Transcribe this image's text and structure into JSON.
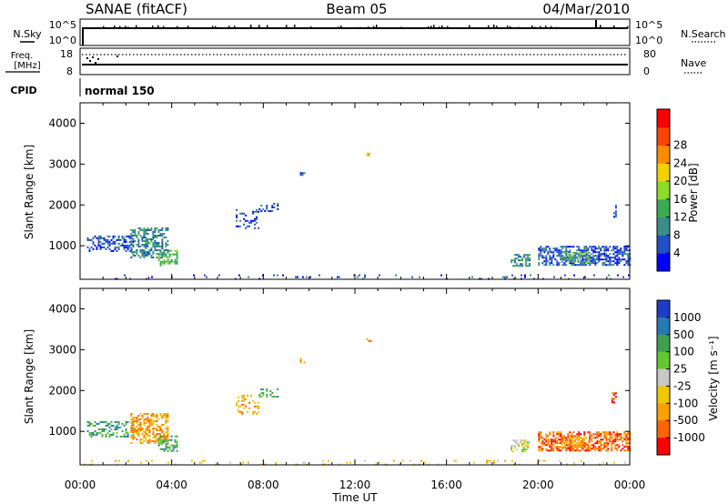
{
  "header": {
    "station": "SANAE (fitACF)",
    "beam": "Beam 05",
    "date": "04/Mar/2010"
  },
  "top_panels": {
    "nsky": {
      "label": "N.Sky",
      "ticks_left": [
        "10^5",
        "10^0"
      ],
      "ticks_right": [
        "10^5",
        "10^0"
      ],
      "right_label": "N.Search"
    },
    "freq": {
      "label_line1": "Freq.",
      "label_line2": "[MHz]",
      "ticks_left": [
        "18",
        "8"
      ],
      "ticks_right": [
        "80",
        "0"
      ],
      "right_label": "Nave"
    },
    "cpid": {
      "label": "CPID",
      "value": "normal 150"
    }
  },
  "x_axis": {
    "label": "Time UT",
    "tick_labels": [
      "00:00",
      "04:00",
      "08:00",
      "12:00",
      "16:00",
      "20:00",
      "00:00"
    ],
    "range_hours": [
      0,
      24
    ]
  },
  "chart_data": [
    {
      "type": "heatmap",
      "title": "",
      "xlabel": "Time UT",
      "ylabel": "Slant Range [km]",
      "xlim": [
        0,
        24
      ],
      "ylim": [
        180,
        4500
      ],
      "yticks": [
        1000,
        2000,
        3000,
        4000
      ],
      "ytick_labels": [
        "1000",
        "2000",
        "3000",
        "4000"
      ],
      "colorbar": {
        "label": "Power [dB]",
        "ticks": [
          "4",
          "8",
          "12",
          "16",
          "20",
          "24",
          "28"
        ],
        "colors": [
          "#0000ff",
          "#2050c8",
          "#3c8c8c",
          "#3caa50",
          "#8cdc28",
          "#f0d200",
          "#ff8c00",
          "#ff4400",
          "#ff0000"
        ]
      },
      "regions": [
        {
          "t0": 0.0,
          "t1": 24.0,
          "r0": 180,
          "r1": 300,
          "density": 0.07,
          "level": 1
        },
        {
          "t0": 0.3,
          "t1": 2.3,
          "r0": 850,
          "r1": 1250,
          "density": 0.45,
          "level": 1
        },
        {
          "t0": 2.2,
          "t1": 3.8,
          "r0": 700,
          "r1": 1450,
          "density": 0.55,
          "level": 2
        },
        {
          "t0": 3.4,
          "t1": 4.2,
          "r0": 500,
          "r1": 900,
          "density": 0.45,
          "level": 3
        },
        {
          "t0": 6.8,
          "t1": 7.8,
          "r0": 1450,
          "r1": 1900,
          "density": 0.25,
          "level": 1
        },
        {
          "t0": 7.8,
          "t1": 8.6,
          "r0": 1850,
          "r1": 2050,
          "density": 0.35,
          "level": 1
        },
        {
          "t0": 9.6,
          "t1": 9.8,
          "r0": 2650,
          "r1": 2800,
          "density": 0.4,
          "level": 1
        },
        {
          "t0": 12.5,
          "t1": 12.7,
          "r0": 3200,
          "r1": 3280,
          "density": 0.6,
          "level": 5
        },
        {
          "t0": 18.8,
          "t1": 19.6,
          "r0": 500,
          "r1": 800,
          "density": 0.6,
          "level": 2
        },
        {
          "t0": 20.0,
          "t1": 24.0,
          "r0": 550,
          "r1": 1000,
          "density": 0.6,
          "level": 1
        },
        {
          "t0": 21.0,
          "t1": 22.2,
          "r0": 600,
          "r1": 850,
          "density": 0.5,
          "level": 3
        },
        {
          "t0": 23.2,
          "t1": 23.4,
          "r0": 1700,
          "r1": 2000,
          "density": 0.5,
          "level": 1
        }
      ]
    },
    {
      "type": "heatmap",
      "title": "",
      "xlabel": "Time UT",
      "ylabel": "Slant Range [km]",
      "xlim": [
        0,
        24
      ],
      "ylim": [
        180,
        4500
      ],
      "yticks": [
        1000,
        2000,
        3000,
        4000
      ],
      "ytick_labels": [
        "1000",
        "2000",
        "3000",
        "4000"
      ],
      "colorbar": {
        "label": "Velocity [m s⁻¹]",
        "ticks": [
          "1000",
          "500",
          "100",
          "25",
          "-25",
          "-100",
          "-500",
          "-1000"
        ],
        "colors": [
          "#1e3cc8",
          "#2878b4",
          "#3ca050",
          "#64c832",
          "#c8c8c8",
          "#f0c800",
          "#ffa000",
          "#ff6400",
          "#ff0000"
        ]
      },
      "regions": [
        {
          "t0": 0.0,
          "t1": 24.0,
          "r0": 180,
          "r1": 300,
          "density": 0.08,
          "level": 5
        },
        {
          "t0": 0.3,
          "t1": 2.3,
          "r0": 850,
          "r1": 1250,
          "density": 0.45,
          "level": 2
        },
        {
          "t0": 2.2,
          "t1": 3.8,
          "r0": 700,
          "r1": 1450,
          "density": 0.55,
          "level": 6
        },
        {
          "t0": 3.4,
          "t1": 4.2,
          "r0": 500,
          "r1": 900,
          "density": 0.45,
          "level": 2
        },
        {
          "t0": 6.8,
          "t1": 7.8,
          "r0": 1450,
          "r1": 1900,
          "density": 0.25,
          "level": 6
        },
        {
          "t0": 7.8,
          "t1": 8.6,
          "r0": 1850,
          "r1": 2050,
          "density": 0.35,
          "level": 2
        },
        {
          "t0": 9.6,
          "t1": 9.8,
          "r0": 2650,
          "r1": 2800,
          "density": 0.4,
          "level": 6
        },
        {
          "t0": 12.5,
          "t1": 12.7,
          "r0": 3200,
          "r1": 3280,
          "density": 0.6,
          "level": 7
        },
        {
          "t0": 18.8,
          "t1": 19.6,
          "r0": 500,
          "r1": 800,
          "density": 0.6,
          "level": 4
        },
        {
          "t0": 20.0,
          "t1": 24.0,
          "r0": 550,
          "r1": 1000,
          "density": 0.6,
          "level": 7
        },
        {
          "t0": 21.0,
          "t1": 22.2,
          "r0": 600,
          "r1": 850,
          "density": 0.5,
          "level": 6
        },
        {
          "t0": 23.2,
          "t1": 23.4,
          "r0": 1700,
          "r1": 2000,
          "density": 0.5,
          "level": 7
        }
      ]
    }
  ]
}
